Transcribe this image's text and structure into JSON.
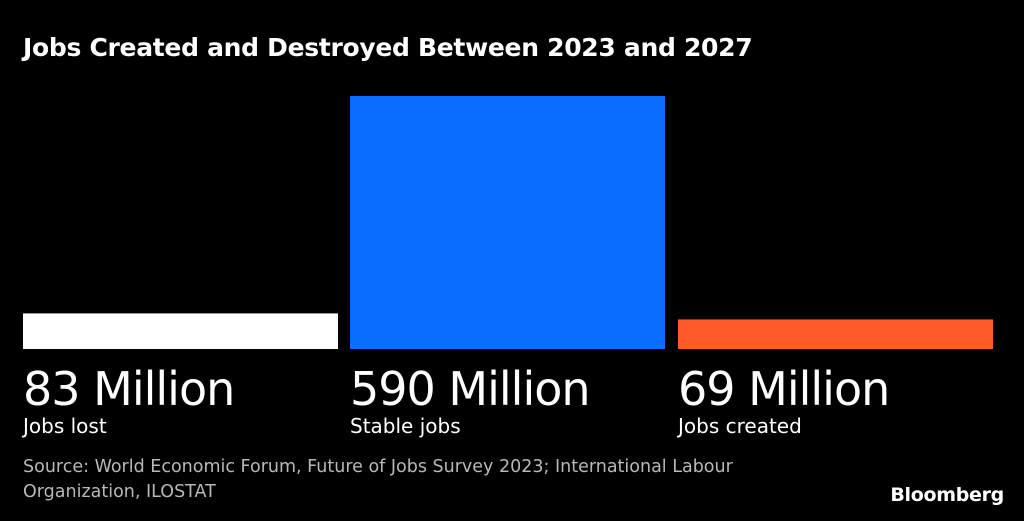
{
  "title": "Jobs Created and Destroyed Between 2023 and 2027",
  "chart_data": {
    "type": "bar",
    "title": "Jobs Created and Destroyed Between 2023 and 2027",
    "categories": [
      "Jobs lost",
      "Stable jobs",
      "Jobs created"
    ],
    "values": [
      83,
      590,
      69
    ],
    "unit": "Million",
    "value_labels": [
      "83 Million",
      "590 Million",
      "69 Million"
    ],
    "colors": [
      "#ffffff",
      "#0a6dff",
      "#ff5a27"
    ],
    "ylim": [
      0,
      590
    ],
    "grid": false
  },
  "source": "Source: World Economic Forum, Future of Jobs Survey 2023; International Labour Organization, ILOSTAT",
  "brand": "Bloomberg"
}
